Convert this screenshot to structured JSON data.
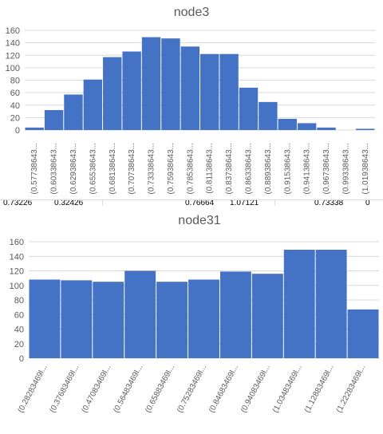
{
  "chart_data": [
    {
      "type": "bar",
      "title": "node3",
      "ylim": [
        0,
        160
      ],
      "yticks": [
        0,
        20,
        40,
        60,
        80,
        100,
        120,
        140,
        160
      ],
      "grid": true,
      "bar_color": "#4472c4",
      "categories": [
        "(0.57738643...",
        "(0.60338643...",
        "(0.62938643...",
        "(0.65538643...",
        "(0.68138643...",
        "(0.70738643...",
        "(0.73338643...",
        "(0.75938643...",
        "(0.78538643...",
        "(0.81138643...",
        "(0.83738643...",
        "(0.86338643...",
        "(0.88938643...",
        "(0.91538643...",
        "(0.94138643...",
        "(0.96738643...",
        "(0.99338643...",
        "(1.01938643..."
      ],
      "values": [
        4,
        32,
        57,
        81,
        117,
        126,
        149,
        147,
        134,
        122,
        122,
        68,
        45,
        18,
        11,
        4,
        0,
        2
      ]
    },
    {
      "type": "bar",
      "title": "node31",
      "ylim": [
        0,
        160
      ],
      "yticks": [
        0,
        20,
        40,
        60,
        80,
        100,
        120,
        140,
        160
      ],
      "grid": true,
      "bar_color": "#4472c4",
      "categories": [
        "(0.28283469l...",
        "(0.37683469l...",
        "(0.47083469l...",
        "(0.56483469l...",
        "(0.65883469l...",
        "(0.75283469l...",
        "(0.84683469l...",
        "(0.94083469l...",
        "(1.03483469l...",
        "(1.12883469l...",
        "(1.22283469l..."
      ],
      "values": [
        108,
        107,
        105,
        120,
        105,
        108,
        119,
        116,
        149,
        149,
        67
      ]
    }
  ],
  "strip_cells": [
    "0.73226",
    "0.32426",
    "0.76664",
    "1.07121",
    "0.73338",
    "0"
  ]
}
